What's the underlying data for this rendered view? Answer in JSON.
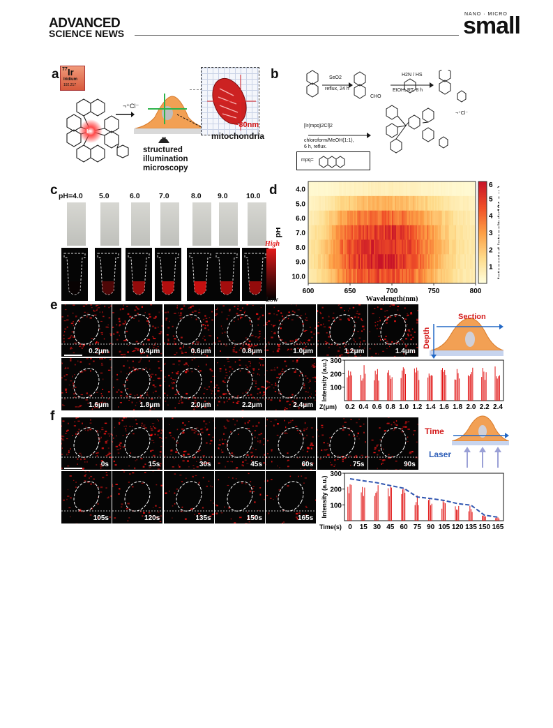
{
  "header": {
    "journal_left_line1": "ADVANCED",
    "journal_left_line2": "SCIENCE NEWS",
    "journal_right_small": "NANO · MICRO",
    "journal_right_big": "small"
  },
  "panel_labels": [
    "a",
    "b",
    "c",
    "d",
    "e",
    "f"
  ],
  "panel_a": {
    "element_number": "77",
    "element_symbol": "Ir",
    "element_name": "Iridium",
    "element_mass": "192.217",
    "counterion": "¬⁺Cl⁻",
    "size_label": "~80nm",
    "organelle_label": "mitochondria",
    "method_line1": "structured",
    "method_line2": "illumination",
    "method_line3": "microscopy",
    "complex_colors": {
      "bond": "#1a1a1a",
      "ir_glow": "#e0101e"
    }
  },
  "panel_b": {
    "step1_reagent": "SeO2",
    "step1_cond": "reflux, 24 h",
    "step1_group": "CHO",
    "step2_reagent": "H2N / HS",
    "step2_cond": "EtOH, RT, 8 h",
    "step3_reagent": "[Ir(mpq)2Cl]2",
    "step3_cond1": "chloroform/MeOH(1:1),",
    "step3_cond2": "6 h, reflux.",
    "counterion": "¬⁺Cl⁻",
    "ligand_label": "mpq="
  },
  "panel_c": {
    "ph_labels": [
      "pH=4.0",
      "5.0",
      "6.0",
      "7.0",
      "8.0",
      "9.0",
      "10.0"
    ],
    "intensities": [
      0.05,
      0.45,
      0.7,
      0.8,
      0.85,
      0.75,
      0.7
    ],
    "scale_high": "High",
    "scale_low": "Low"
  },
  "panel_d": {
    "y_ticks": [
      "4.0",
      "5.0",
      "6.0",
      "7.0",
      "8.0",
      "9.0",
      "10.0"
    ],
    "x_ticks": [
      "600",
      "650",
      "700",
      "750",
      "800"
    ],
    "colorbar_ticks": [
      "1",
      "2",
      "3",
      "4",
      "5",
      "6"
    ]
  },
  "chart_data": [
    {
      "type": "heatmap",
      "title": "",
      "xlabel": "Wavelength(nm)",
      "ylabel": "pH",
      "colorbar_label": "Integrated intensity(×10⁴ a.u.)",
      "x": [
        600,
        620,
        640,
        660,
        680,
        700,
        720,
        740,
        760,
        780,
        800
      ],
      "y": [
        "4.0",
        "5.0",
        "6.0",
        "7.0",
        "8.0",
        "9.0",
        "10.0"
      ],
      "xlim": [
        600,
        800
      ],
      "zlim": [
        0,
        6
      ],
      "values": [
        [
          0.3,
          0.3,
          0.5,
          0.6,
          0.7,
          0.7,
          0.6,
          0.5,
          0.4,
          0.3,
          0.3
        ],
        [
          0.5,
          0.9,
          1.6,
          2.2,
          2.4,
          2.4,
          2.2,
          1.8,
          1.2,
          0.8,
          0.6
        ],
        [
          0.7,
          1.4,
          2.8,
          3.6,
          4.0,
          4.0,
          3.6,
          2.9,
          1.9,
          1.1,
          0.8
        ],
        [
          0.9,
          1.8,
          3.6,
          4.6,
          5.2,
          5.2,
          4.6,
          3.6,
          2.2,
          1.3,
          0.9
        ],
        [
          1.0,
          2.0,
          3.9,
          4.9,
          5.5,
          5.4,
          4.8,
          3.7,
          2.3,
          1.3,
          0.9
        ],
        [
          1.0,
          2.1,
          4.0,
          5.0,
          5.6,
          5.5,
          4.8,
          3.6,
          2.2,
          1.2,
          0.9
        ],
        [
          0.8,
          1.7,
          3.3,
          4.2,
          4.7,
          4.6,
          4.1,
          3.1,
          1.9,
          1.1,
          0.8
        ]
      ]
    },
    {
      "type": "bar",
      "title": "",
      "xlabel": "Z(μm)",
      "ylabel": "Intensity (a.u.)",
      "categories": [
        "0.2",
        "0.4",
        "0.6",
        "0.8",
        "1.0",
        "1.2",
        "1.4",
        "1.6",
        "1.8",
        "2.0",
        "2.2",
        "2.4"
      ],
      "values": [
        235,
        265,
        250,
        250,
        260,
        250,
        210,
        250,
        255,
        260,
        262,
        260
      ],
      "ylim": [
        0,
        300
      ],
      "y_ticks": [
        "100",
        "200",
        "300"
      ]
    },
    {
      "type": "bar",
      "title": "",
      "xlabel": "Time(s)",
      "ylabel": "Intensity (a.u.)",
      "categories": [
        "0",
        "15",
        "30",
        "45",
        "60",
        "75",
        "90",
        "105",
        "120",
        "135",
        "150",
        "165"
      ],
      "values": [
        265,
        255,
        245,
        225,
        210,
        160,
        145,
        130,
        110,
        95,
        40,
        25
      ],
      "trend": [
        265,
        252,
        240,
        222,
        205,
        150,
        140,
        128,
        108,
        98,
        35,
        22
      ],
      "ylim": [
        0,
        300
      ],
      "y_ticks": [
        "100",
        "200",
        "300"
      ]
    }
  ],
  "panel_e": {
    "depth_labels": [
      "0.2μm",
      "0.4μm",
      "0.6μm",
      "0.8μm",
      "1.0μm",
      "1.2μm",
      "1.4μm",
      "1.6μm",
      "1.8μm",
      "2.0μm",
      "2.2μm",
      "2.4μm"
    ],
    "section_label": "Section",
    "depth_label": "Depth"
  },
  "panel_f": {
    "time_labels": [
      "0s",
      "15s",
      "30s",
      "45s",
      "60s",
      "75s",
      "90s",
      "105s",
      "120s",
      "135s",
      "150s",
      "165s"
    ],
    "time_label": "Time",
    "laser_label": "Laser"
  }
}
